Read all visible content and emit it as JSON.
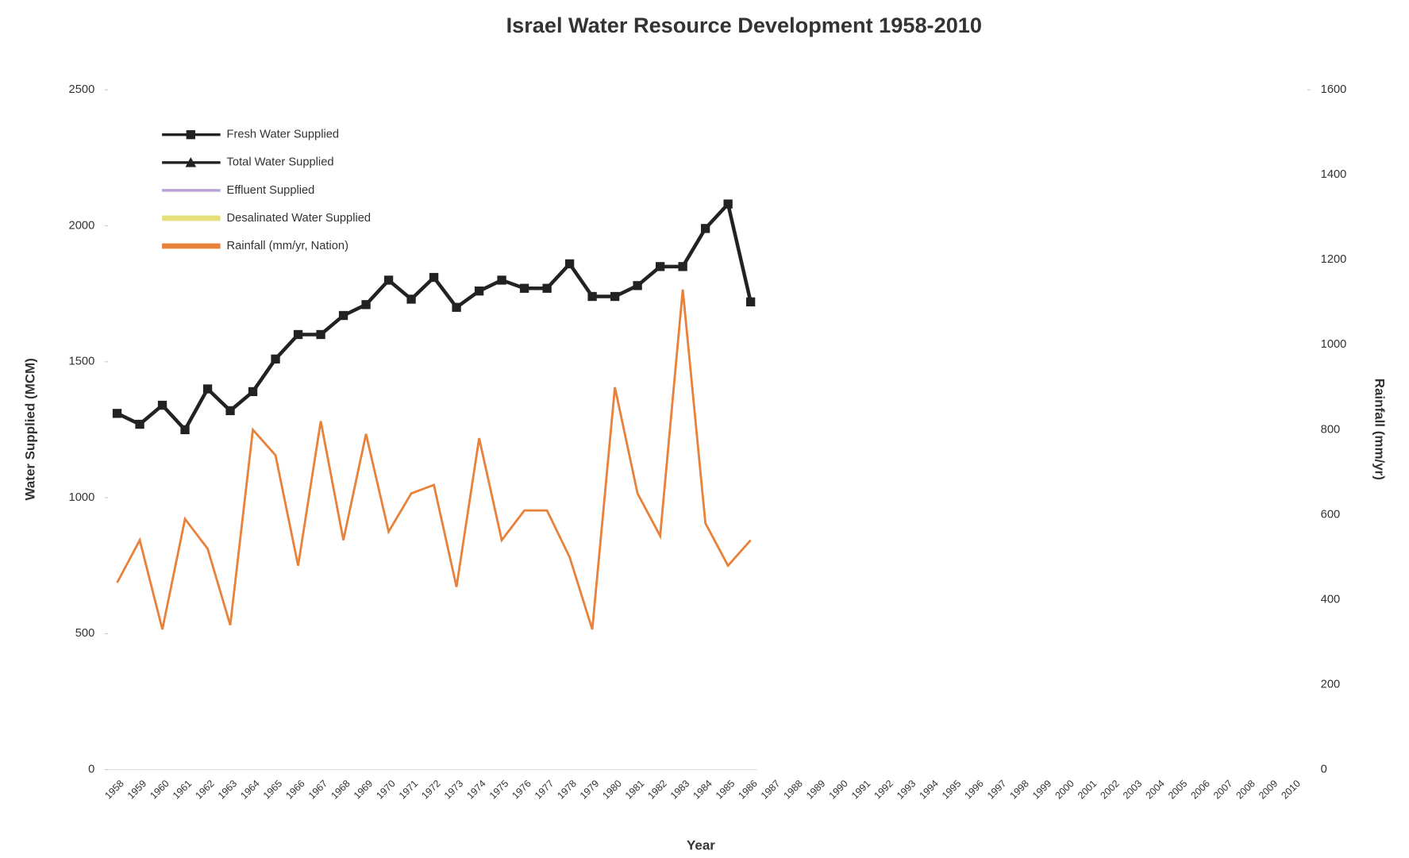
{
  "chart_data": {
    "type": "line",
    "title": "Israel Water Resource Development 1958-2010",
    "x_label": "Year",
    "y_label": "Water Supplied (MCM)",
    "y2_label": "Rainfall (mm/yr)",
    "categories": [
      1958,
      1959,
      1960,
      1961,
      1962,
      1963,
      1964,
      1965,
      1966,
      1967,
      1968,
      1969,
      1970,
      1971,
      1972,
      1973,
      1974,
      1975,
      1976,
      1977,
      1978,
      1979,
      1980,
      1981,
      1982,
      1983,
      1984,
      1985,
      1986,
      1987,
      1988,
      1989,
      1990,
      1991,
      1992,
      1993,
      1994,
      1995,
      1996,
      1997,
      1998,
      1999,
      2000,
      2001,
      2002,
      2003,
      2004,
      2005,
      2006,
      2007,
      2008,
      2009,
      2010
    ],
    "series": [
      {
        "name": "Fresh Water Supplied",
        "color": "#222222",
        "marker": "square",
        "values": [
          1310,
          1270,
          1340,
          1250,
          1400,
          1320,
          1390,
          1510,
          1600,
          1600,
          1670,
          1710,
          1800,
          1730,
          1810,
          1700,
          1760,
          1800,
          1770,
          1770,
          1860,
          1740,
          1740,
          1780,
          1850,
          1850,
          1990,
          2080,
          1720,
          null,
          null,
          null,
          null,
          null,
          null,
          null,
          null,
          null,
          null,
          null,
          null,
          null,
          null,
          null,
          null,
          null,
          null,
          null,
          null,
          null,
          null,
          null,
          null
        ]
      },
      {
        "name": "Total Water Supplied",
        "color": "#222222",
        "marker": "triangle",
        "values": [
          null,
          null,
          null,
          null,
          null,
          null,
          null,
          null,
          null,
          null,
          null,
          null,
          null,
          null,
          null,
          null,
          null,
          null,
          null,
          null,
          null,
          null,
          null,
          null,
          null,
          null,
          null,
          null,
          null,
          null,
          null,
          null,
          null,
          null,
          null,
          null,
          null,
          null,
          null,
          null,
          null,
          null,
          null,
          null,
          null,
          null,
          null,
          null,
          null,
          null,
          null,
          null,
          null
        ]
      },
      {
        "name": "Effluent Supplied",
        "color": "#b9a3d6",
        "marker": "none",
        "values": [
          null,
          null,
          null,
          null,
          null,
          null,
          null,
          null,
          null,
          null,
          null,
          null,
          null,
          null,
          null,
          null,
          null,
          null,
          null,
          null,
          null,
          null,
          null,
          null,
          null,
          null,
          null,
          null,
          null,
          null,
          null,
          null,
          null,
          null,
          null,
          null,
          null,
          null,
          null,
          null,
          null,
          null,
          null,
          null,
          null,
          null,
          null,
          null,
          null,
          null,
          null,
          null,
          null
        ]
      },
      {
        "name": "Desalinated Water Supplied",
        "color": "#e6e07a",
        "marker": "none",
        "values": [
          null,
          null,
          null,
          null,
          null,
          null,
          null,
          null,
          null,
          null,
          null,
          null,
          null,
          null,
          null,
          null,
          null,
          null,
          null,
          null,
          null,
          null,
          null,
          null,
          null,
          null,
          null,
          null,
          null,
          null,
          null,
          null,
          null,
          null,
          null,
          null,
          null,
          null,
          null,
          null,
          null,
          null,
          null,
          null,
          null,
          null,
          null,
          null,
          null,
          null,
          null,
          null,
          null
        ]
      },
      {
        "name": "Rainfall (mm/yr, Nation)",
        "color": "#e8813a",
        "marker": "none",
        "axis": "y2",
        "values": [
          440,
          540,
          330,
          590,
          520,
          340,
          800,
          740,
          480,
          820,
          540,
          790,
          560,
          650,
          670,
          430,
          780,
          540,
          610,
          610,
          500,
          330,
          900,
          650,
          550,
          1130,
          580,
          480,
          540,
          null,
          null,
          null,
          null,
          null,
          null,
          null,
          null,
          null,
          null,
          null,
          null,
          null,
          null,
          null,
          null,
          null,
          null,
          null,
          null,
          null,
          null,
          null,
          null
        ]
      }
    ],
    "ylim": [
      0,
      2500
    ],
    "yticks": [
      0,
      500,
      1000,
      1500,
      2000,
      2500
    ],
    "y2lim": [
      0,
      1600
    ],
    "y2ticks": [
      0,
      200,
      400,
      600,
      800,
      1000,
      1200,
      1400,
      1600
    ],
    "legend": "upper left",
    "grid": false
  }
}
